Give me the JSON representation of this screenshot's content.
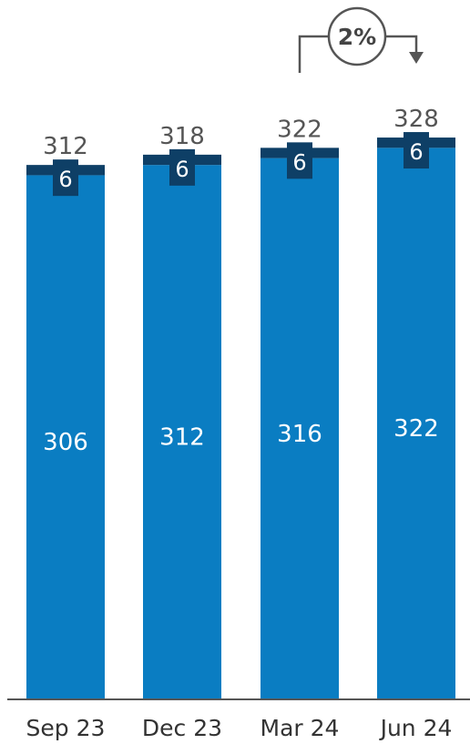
{
  "chart_data": {
    "type": "bar",
    "stacked": true,
    "categories": [
      "Sep 23",
      "Dec 23",
      "Mar 24",
      "Jun 24"
    ],
    "series": [
      {
        "values": [
          306,
          312,
          316,
          322
        ],
        "color": "#0a7dc2"
      },
      {
        "values": [
          6,
          6,
          6,
          6
        ],
        "color": "#0e3f66"
      }
    ],
    "totals": [
      312,
      318,
      322,
      328
    ],
    "ylim": [
      0,
      336
    ],
    "grid": false,
    "legend": "none",
    "annotation": {
      "text": "2%",
      "from_category": "Mar 24",
      "to_category": "Jun 24",
      "color": "#555555"
    },
    "total_label_color": "#555555",
    "segment_label_color": "#ffffff",
    "axis_color": "#555555",
    "tick_label_color": "#333333"
  }
}
